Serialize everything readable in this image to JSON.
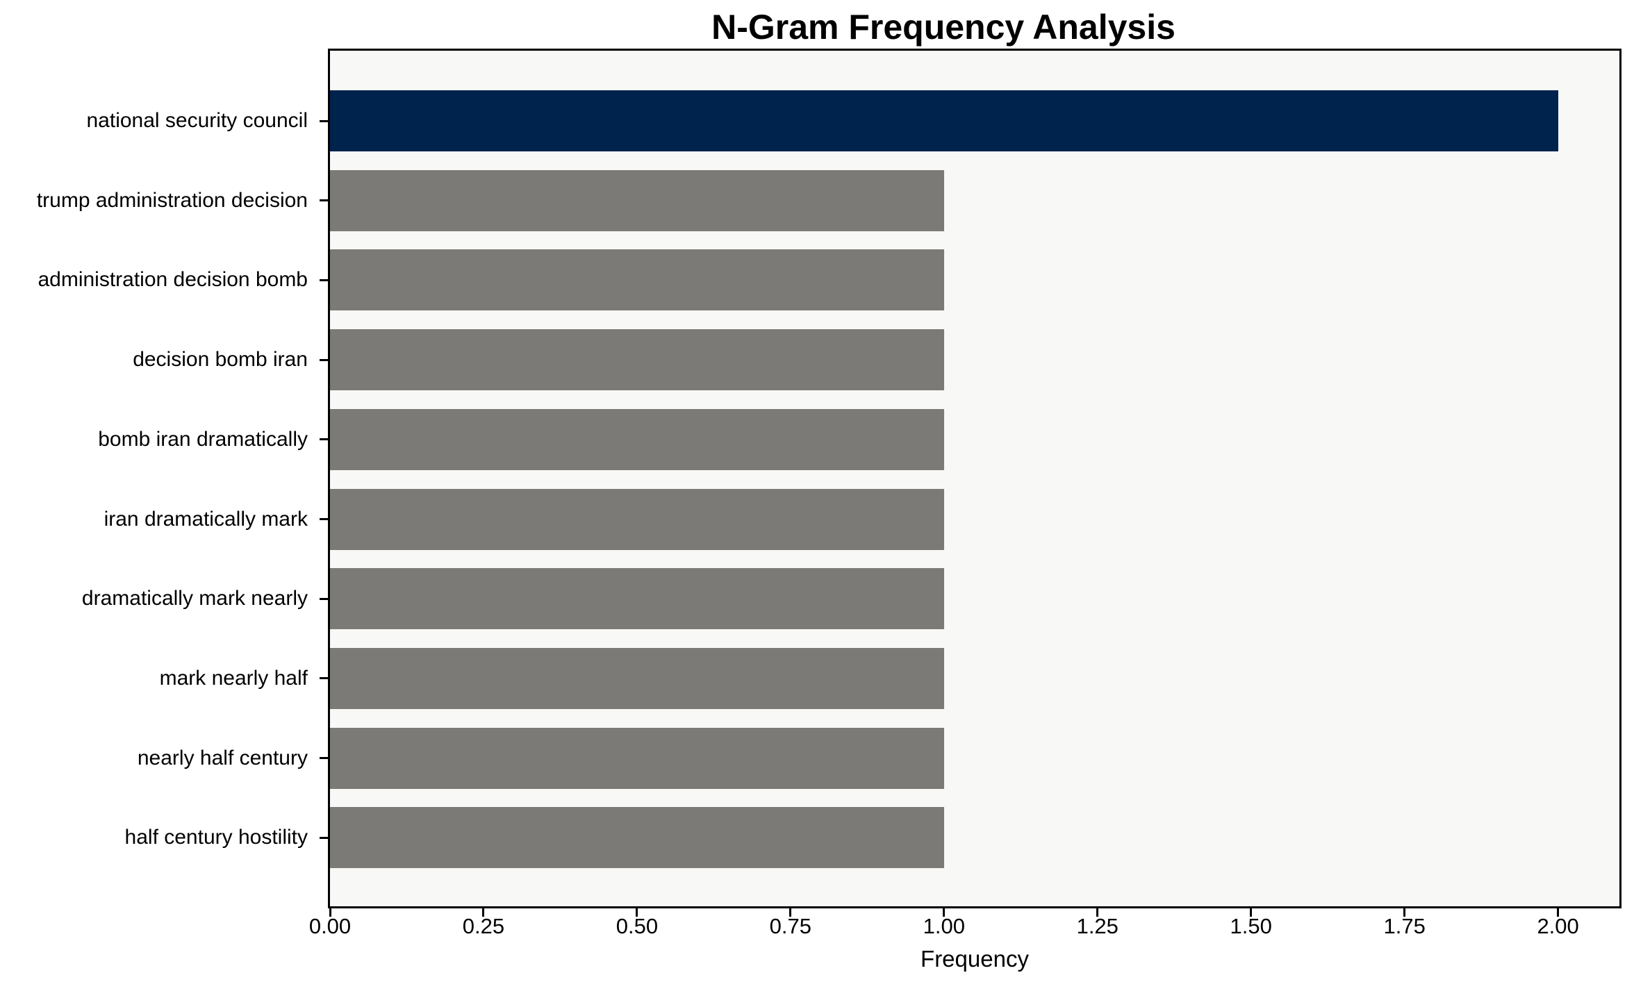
{
  "chart_data": {
    "type": "bar",
    "orientation": "horizontal",
    "title": "N-Gram Frequency Analysis",
    "xlabel": "Frequency",
    "ylabel": "",
    "categories": [
      "national security council",
      "trump administration decision",
      "administration decision bomb",
      "decision bomb iran",
      "bomb iran dramatically",
      "iran dramatically mark",
      "dramatically mark nearly",
      "mark nearly half",
      "nearly half century",
      "half century hostility"
    ],
    "values": [
      2,
      1,
      1,
      1,
      1,
      1,
      1,
      1,
      1,
      1
    ],
    "bar_colors": [
      "#00234d",
      "#7b7a77",
      "#7b7a77",
      "#7b7a77",
      "#7b7a77",
      "#7b7a77",
      "#7b7a77",
      "#7b7a77",
      "#7b7a77",
      "#7b7a77"
    ],
    "xlim": [
      0,
      2.1
    ],
    "xticks": [
      0.0,
      0.25,
      0.5,
      0.75,
      1.0,
      1.25,
      1.5,
      1.75,
      2.0
    ],
    "xtick_labels": [
      "0.00",
      "0.25",
      "0.50",
      "0.75",
      "1.00",
      "1.25",
      "1.50",
      "1.75",
      "2.00"
    ],
    "grid": false,
    "legend": null,
    "colors": {
      "highlight_bar": "#00234d",
      "default_bar": "#7b7a77",
      "plot_background": "#f8f8f7",
      "figure_background": "#ffffff",
      "axis_and_text": "#000000"
    }
  }
}
